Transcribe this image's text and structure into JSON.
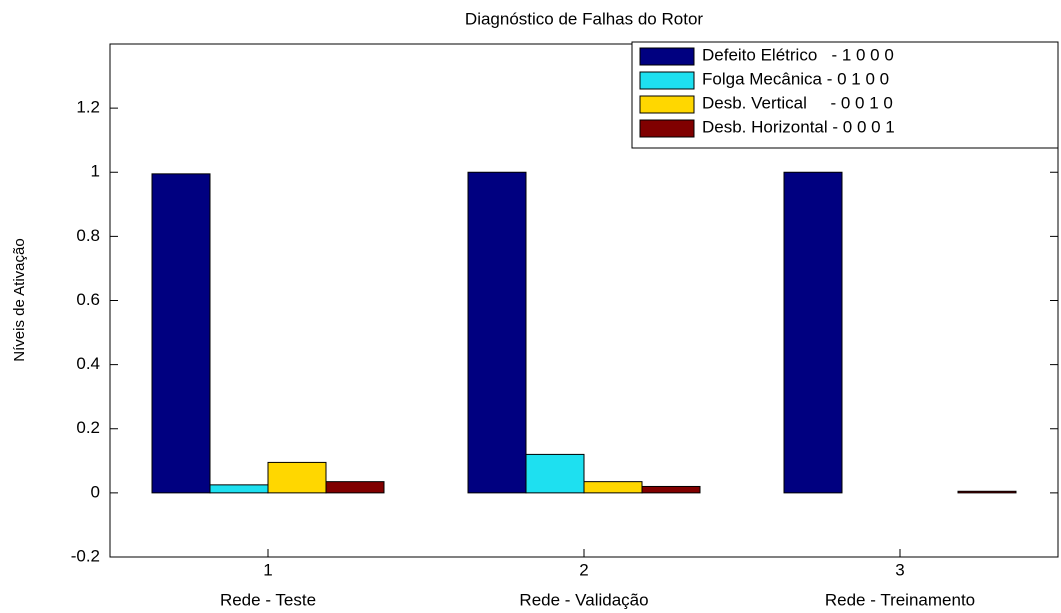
{
  "chart_data": {
    "type": "bar",
    "title": "Diagnóstico de Falhas do Rotor",
    "ylabel": "Níveis de Ativação",
    "xticks": [
      1,
      2,
      3
    ],
    "categories": [
      "Rede - Teste",
      "Rede - Validação",
      "Rede - Treinamento"
    ],
    "series": [
      {
        "name": "Defeito Elétrico   - 1 0 0 0",
        "color": "#000080",
        "values": [
          0.995,
          1.0,
          1.0
        ]
      },
      {
        "name": "Folga Mecânica - 0 1 0 0",
        "color": "#1ee0f0",
        "values": [
          0.025,
          0.12,
          0.0
        ]
      },
      {
        "name": "Desb. Vertical     - 0 0 1 0",
        "color": "#ffd700",
        "values": [
          0.095,
          0.035,
          0.0
        ]
      },
      {
        "name": "Desb. Horizontal - 0 0 0 1",
        "color": "#800000",
        "values": [
          0.035,
          0.02,
          0.005
        ]
      }
    ],
    "ylim": [
      -0.2,
      1.4
    ],
    "yticks": [
      -0.2,
      0,
      0.2,
      0.4,
      0.6,
      0.8,
      1,
      1.2
    ],
    "legend": "upper right"
  }
}
